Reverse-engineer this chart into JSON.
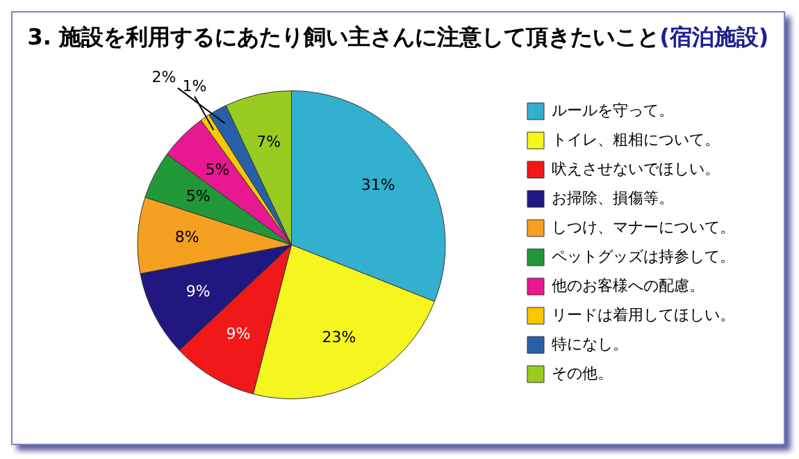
{
  "chart_data": {
    "type": "pie",
    "title": "3. 施設を利用するにあたり飼い主さんに注意して頂きたいこと",
    "subtitle": "(宿泊施設)",
    "categories": [
      "ルールを守って。",
      "トイレ、粗相について。",
      "吠えさせないでほしい。",
      "お掃除、損傷等。",
      "しつけ、マナーについて。",
      "ペットグッズは持参して。",
      "他のお客様への配慮。",
      "リードは着用してほしい。",
      "特になし。",
      "その他。"
    ],
    "values": [
      31,
      23,
      9,
      9,
      8,
      5,
      5,
      1,
      2,
      7
    ],
    "colors": [
      "#33b0d0",
      "#f5f520",
      "#f01818",
      "#201880",
      "#f5a020",
      "#209838",
      "#e81890",
      "#f8c800",
      "#2860a8",
      "#98cc20"
    ],
    "value_labels": [
      "31%",
      "23%",
      "9%",
      "9%",
      "8%",
      "5%",
      "5%",
      "1%",
      "2%",
      "7%"
    ],
    "legend": "right"
  }
}
